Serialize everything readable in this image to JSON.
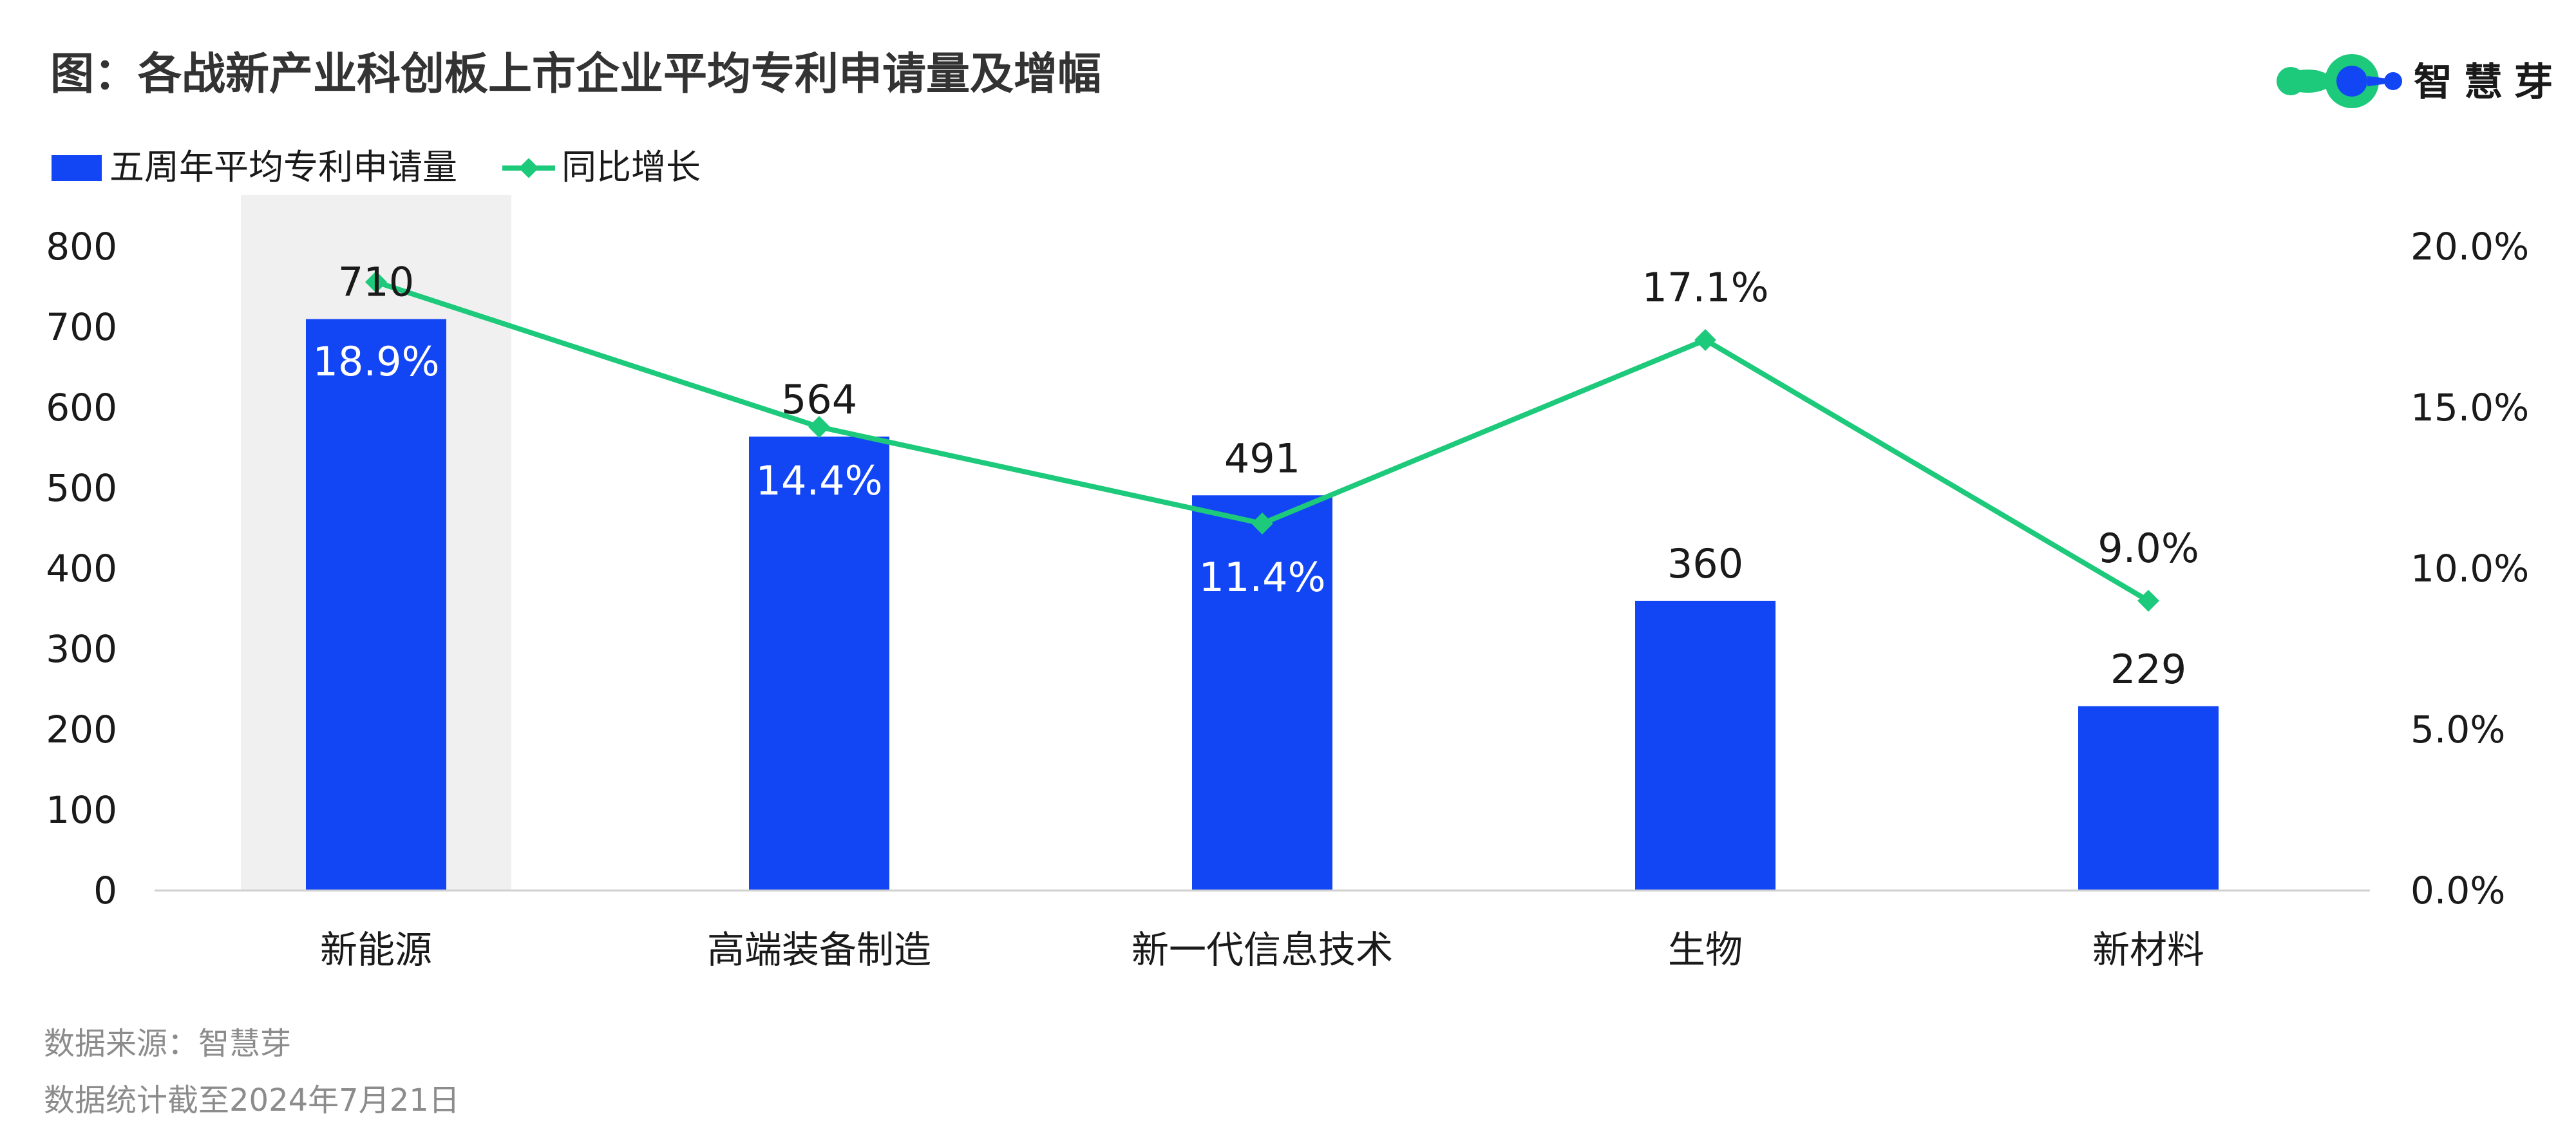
{
  "title": "图：各战新产业科创板上市企业平均专利申请量及增幅",
  "brand": {
    "name": "智慧芽",
    "colors": {
      "green": "#1DC97A",
      "blue": "#1246F5",
      "dark": "#1a1a1a"
    }
  },
  "legend": {
    "placement": "top-left",
    "items": [
      {
        "label": "五周年平均专利申请量",
        "type": "bar",
        "color": "#1246F5"
      },
      {
        "label": "同比增长",
        "type": "line",
        "color": "#1DC97A"
      }
    ]
  },
  "chart_data": {
    "type": "bar",
    "categories": [
      "新能源",
      "高端装备制造",
      "新一代信息技术",
      "生物",
      "新材料"
    ],
    "series": [
      {
        "name": "五周年平均专利申请量",
        "type": "bar",
        "axis": "left",
        "color": "#1246F5",
        "values": [
          710,
          564,
          491,
          360,
          229
        ],
        "value_labels": [
          "710",
          "564",
          "491",
          "360",
          "229"
        ]
      },
      {
        "name": "同比增长",
        "type": "line",
        "axis": "right",
        "color": "#1DC97A",
        "values": [
          18.9,
          14.4,
          11.4,
          17.1,
          9.0
        ],
        "value_labels": [
          "18.9%",
          "14.4%",
          "11.4%",
          "17.1%",
          "9.0%"
        ]
      }
    ],
    "y_left": {
      "range": [
        0,
        800
      ],
      "ticks": [
        0,
        100,
        200,
        300,
        400,
        500,
        600,
        700,
        800
      ],
      "tick_labels": [
        "0",
        "100",
        "200",
        "300",
        "400",
        "500",
        "600",
        "700",
        "800"
      ]
    },
    "y_right": {
      "range": [
        0,
        20
      ],
      "ticks": [
        0,
        5,
        10,
        15,
        20
      ],
      "tick_labels": [
        "0.0%",
        "5.0%",
        "10.0%",
        "15.0%",
        "20.0%"
      ]
    },
    "highlight_category": "新能源",
    "highlight_color": "#F0F0F0",
    "grid": false
  },
  "footer": {
    "source": "数据来源：智慧芽",
    "date": "数据统计截至2024年7月21日"
  }
}
